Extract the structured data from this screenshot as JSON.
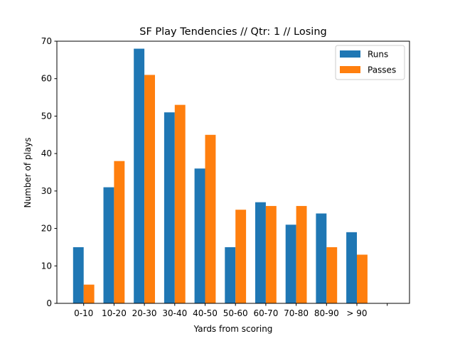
{
  "chart_data": {
    "type": "bar",
    "title": "SF Play Tendencies // Qtr: 1 // Losing",
    "xlabel": "Yards from scoring",
    "ylabel": "Number of plays",
    "categories": [
      "0-10",
      "10-20",
      "20-30",
      "30-40",
      "40-50",
      "50-60",
      "60-70",
      "70-80",
      "80-90",
      "> 90",
      ""
    ],
    "series": [
      {
        "name": "Runs",
        "color": "#1f77b4",
        "values": [
          15,
          31,
          68,
          51,
          36,
          15,
          27,
          21,
          24,
          19,
          null
        ]
      },
      {
        "name": "Passes",
        "color": "#ff7f0e",
        "values": [
          5,
          38,
          61,
          53,
          45,
          25,
          26,
          26,
          15,
          13,
          null
        ]
      }
    ],
    "ylim": [
      0,
      70
    ],
    "yticks": [
      0,
      10,
      20,
      30,
      40,
      50,
      60,
      70
    ],
    "grid": false,
    "legend_position": "top-right"
  }
}
